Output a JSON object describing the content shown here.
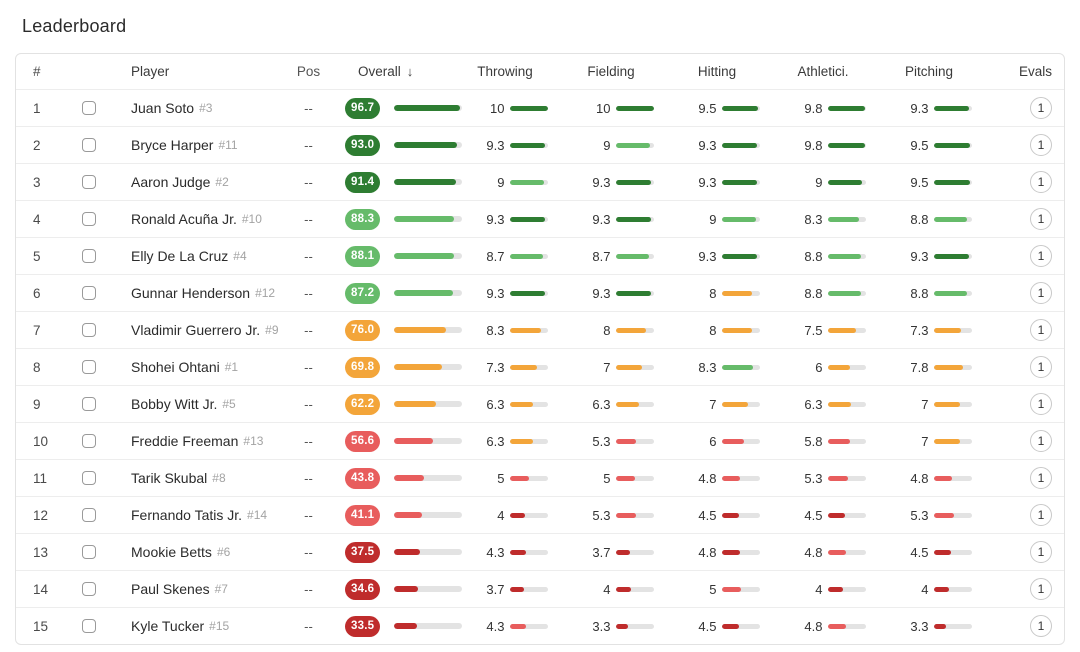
{
  "page": {
    "title": "Leaderboard"
  },
  "colors": {
    "tones": {
      "dark-green": "#2e7d32",
      "light-green": "#66bb6a",
      "orange": "#f3a53a",
      "light-red": "#e85d5d",
      "dark-red": "#bf2c2c"
    },
    "bar_track": "#e3e3e3"
  },
  "table": {
    "columns": [
      "#",
      "Player",
      "Pos",
      "Overall",
      "Throwing",
      "Fielding",
      "Hitting",
      "Athletici.",
      "Pitching",
      "Evals"
    ],
    "sort": {
      "column": "Overall",
      "direction": "desc",
      "icon": "arrow-down"
    },
    "rows": [
      {
        "rank": "1",
        "player": "Juan Soto",
        "jersey": "#3",
        "pos": "--",
        "overall": {
          "value": "96.7",
          "tone": "dark-green"
        },
        "skills": [
          {
            "v": "10",
            "tone": "dark-green"
          },
          {
            "v": "10",
            "tone": "dark-green"
          },
          {
            "v": "9.5",
            "tone": "dark-green"
          },
          {
            "v": "9.8",
            "tone": "dark-green"
          },
          {
            "v": "9.3",
            "tone": "dark-green"
          }
        ],
        "evals": "1"
      },
      {
        "rank": "2",
        "player": "Bryce Harper",
        "jersey": "#11",
        "pos": "--",
        "overall": {
          "value": "93.0",
          "tone": "dark-green"
        },
        "skills": [
          {
            "v": "9.3",
            "tone": "dark-green"
          },
          {
            "v": "9",
            "tone": "light-green"
          },
          {
            "v": "9.3",
            "tone": "dark-green"
          },
          {
            "v": "9.8",
            "tone": "dark-green"
          },
          {
            "v": "9.5",
            "tone": "dark-green"
          }
        ],
        "evals": "1"
      },
      {
        "rank": "3",
        "player": "Aaron Judge",
        "jersey": "#2",
        "pos": "--",
        "overall": {
          "value": "91.4",
          "tone": "dark-green"
        },
        "skills": [
          {
            "v": "9",
            "tone": "light-green"
          },
          {
            "v": "9.3",
            "tone": "dark-green"
          },
          {
            "v": "9.3",
            "tone": "dark-green"
          },
          {
            "v": "9",
            "tone": "dark-green"
          },
          {
            "v": "9.5",
            "tone": "dark-green"
          }
        ],
        "evals": "1"
      },
      {
        "rank": "4",
        "player": "Ronald Acuña Jr.",
        "jersey": "#10",
        "pos": "--",
        "overall": {
          "value": "88.3",
          "tone": "light-green"
        },
        "skills": [
          {
            "v": "9.3",
            "tone": "dark-green"
          },
          {
            "v": "9.3",
            "tone": "dark-green"
          },
          {
            "v": "9",
            "tone": "light-green"
          },
          {
            "v": "8.3",
            "tone": "light-green"
          },
          {
            "v": "8.8",
            "tone": "light-green"
          }
        ],
        "evals": "1"
      },
      {
        "rank": "5",
        "player": "Elly De La Cruz",
        "jersey": "#4",
        "pos": "--",
        "overall": {
          "value": "88.1",
          "tone": "light-green"
        },
        "skills": [
          {
            "v": "8.7",
            "tone": "light-green"
          },
          {
            "v": "8.7",
            "tone": "light-green"
          },
          {
            "v": "9.3",
            "tone": "dark-green"
          },
          {
            "v": "8.8",
            "tone": "light-green"
          },
          {
            "v": "9.3",
            "tone": "dark-green"
          }
        ],
        "evals": "1"
      },
      {
        "rank": "6",
        "player": "Gunnar Henderson",
        "jersey": "#12",
        "pos": "--",
        "overall": {
          "value": "87.2",
          "tone": "light-green"
        },
        "skills": [
          {
            "v": "9.3",
            "tone": "dark-green"
          },
          {
            "v": "9.3",
            "tone": "dark-green"
          },
          {
            "v": "8",
            "tone": "orange"
          },
          {
            "v": "8.8",
            "tone": "light-green"
          },
          {
            "v": "8.8",
            "tone": "light-green"
          }
        ],
        "evals": "1"
      },
      {
        "rank": "7",
        "player": "Vladimir Guerrero Jr.",
        "jersey": "#9",
        "pos": "--",
        "overall": {
          "value": "76.0",
          "tone": "orange"
        },
        "skills": [
          {
            "v": "8.3",
            "tone": "orange"
          },
          {
            "v": "8",
            "tone": "orange"
          },
          {
            "v": "8",
            "tone": "orange"
          },
          {
            "v": "7.5",
            "tone": "orange"
          },
          {
            "v": "7.3",
            "tone": "orange"
          }
        ],
        "evals": "1"
      },
      {
        "rank": "8",
        "player": "Shohei Ohtani",
        "jersey": "#1",
        "pos": "--",
        "overall": {
          "value": "69.8",
          "tone": "orange"
        },
        "skills": [
          {
            "v": "7.3",
            "tone": "orange"
          },
          {
            "v": "7",
            "tone": "orange"
          },
          {
            "v": "8.3",
            "tone": "light-green"
          },
          {
            "v": "6",
            "tone": "orange"
          },
          {
            "v": "7.8",
            "tone": "orange"
          }
        ],
        "evals": "1"
      },
      {
        "rank": "9",
        "player": "Bobby Witt Jr.",
        "jersey": "#5",
        "pos": "--",
        "overall": {
          "value": "62.2",
          "tone": "orange"
        },
        "skills": [
          {
            "v": "6.3",
            "tone": "orange"
          },
          {
            "v": "6.3",
            "tone": "orange"
          },
          {
            "v": "7",
            "tone": "orange"
          },
          {
            "v": "6.3",
            "tone": "orange"
          },
          {
            "v": "7",
            "tone": "orange"
          }
        ],
        "evals": "1"
      },
      {
        "rank": "10",
        "player": "Freddie Freeman",
        "jersey": "#13",
        "pos": "--",
        "overall": {
          "value": "56.6",
          "tone": "light-red"
        },
        "skills": [
          {
            "v": "6.3",
            "tone": "orange"
          },
          {
            "v": "5.3",
            "tone": "light-red"
          },
          {
            "v": "6",
            "tone": "light-red"
          },
          {
            "v": "5.8",
            "tone": "light-red"
          },
          {
            "v": "7",
            "tone": "orange"
          }
        ],
        "evals": "1"
      },
      {
        "rank": "11",
        "player": "Tarik Skubal",
        "jersey": "#8",
        "pos": "--",
        "overall": {
          "value": "43.8",
          "tone": "light-red"
        },
        "skills": [
          {
            "v": "5",
            "tone": "light-red"
          },
          {
            "v": "5",
            "tone": "light-red"
          },
          {
            "v": "4.8",
            "tone": "light-red"
          },
          {
            "v": "5.3",
            "tone": "light-red"
          },
          {
            "v": "4.8",
            "tone": "light-red"
          }
        ],
        "evals": "1"
      },
      {
        "rank": "12",
        "player": "Fernando Tatis Jr.",
        "jersey": "#14",
        "pos": "--",
        "overall": {
          "value": "41.1",
          "tone": "light-red"
        },
        "skills": [
          {
            "v": "4",
            "tone": "dark-red"
          },
          {
            "v": "5.3",
            "tone": "light-red"
          },
          {
            "v": "4.5",
            "tone": "dark-red"
          },
          {
            "v": "4.5",
            "tone": "dark-red"
          },
          {
            "v": "5.3",
            "tone": "light-red"
          }
        ],
        "evals": "1"
      },
      {
        "rank": "13",
        "player": "Mookie Betts",
        "jersey": "#6",
        "pos": "--",
        "overall": {
          "value": "37.5",
          "tone": "dark-red"
        },
        "skills": [
          {
            "v": "4.3",
            "tone": "dark-red"
          },
          {
            "v": "3.7",
            "tone": "dark-red"
          },
          {
            "v": "4.8",
            "tone": "dark-red"
          },
          {
            "v": "4.8",
            "tone": "light-red"
          },
          {
            "v": "4.5",
            "tone": "dark-red"
          }
        ],
        "evals": "1"
      },
      {
        "rank": "14",
        "player": "Paul Skenes",
        "jersey": "#7",
        "pos": "--",
        "overall": {
          "value": "34.6",
          "tone": "dark-red"
        },
        "skills": [
          {
            "v": "3.7",
            "tone": "dark-red"
          },
          {
            "v": "4",
            "tone": "dark-red"
          },
          {
            "v": "5",
            "tone": "light-red"
          },
          {
            "v": "4",
            "tone": "dark-red"
          },
          {
            "v": "4",
            "tone": "dark-red"
          }
        ],
        "evals": "1"
      },
      {
        "rank": "15",
        "player": "Kyle Tucker",
        "jersey": "#15",
        "pos": "--",
        "overall": {
          "value": "33.5",
          "tone": "dark-red"
        },
        "skills": [
          {
            "v": "4.3",
            "tone": "light-red"
          },
          {
            "v": "3.3",
            "tone": "dark-red"
          },
          {
            "v": "4.5",
            "tone": "dark-red"
          },
          {
            "v": "4.8",
            "tone": "light-red"
          },
          {
            "v": "3.3",
            "tone": "dark-red"
          }
        ],
        "evals": "1"
      }
    ]
  }
}
